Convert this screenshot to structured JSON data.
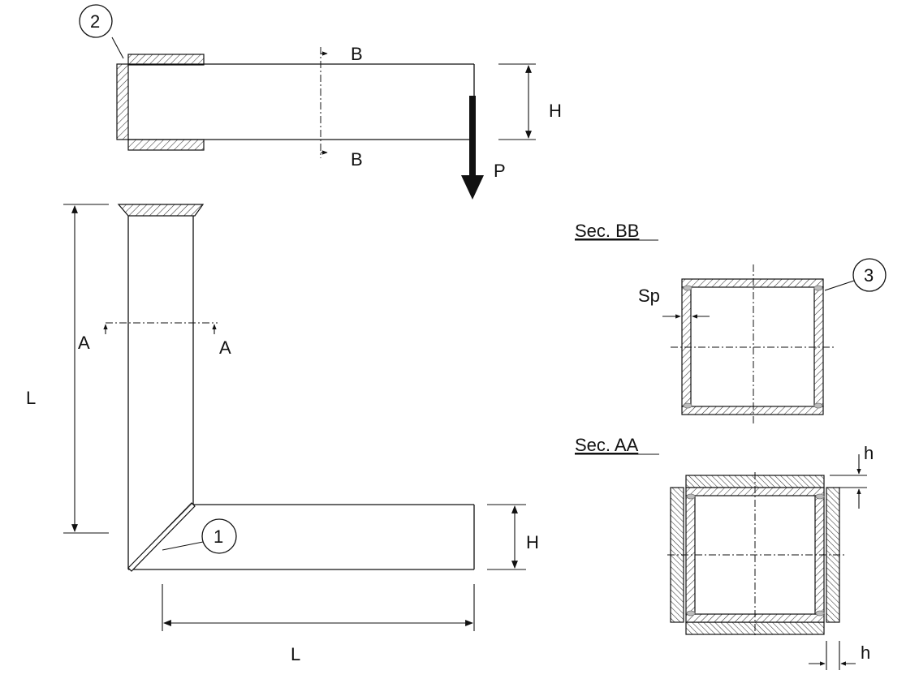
{
  "labels": {
    "callout_1": "1",
    "callout_2": "2",
    "callout_3": "3",
    "section_b_top": "B",
    "section_b_bottom": "B",
    "dim_h_top": "H",
    "dim_h_bottom": "H",
    "load": "P",
    "section_a_left": "A",
    "section_a_right": "A",
    "dim_l_vertical": "L",
    "dim_l_horizontal": "L",
    "title_sec_bb": "Sec. BB",
    "title_sec_aa": "Sec. AA",
    "dim_sp": "Sp",
    "dim_h_small_top": "h",
    "dim_h_small_bottom": "h"
  }
}
